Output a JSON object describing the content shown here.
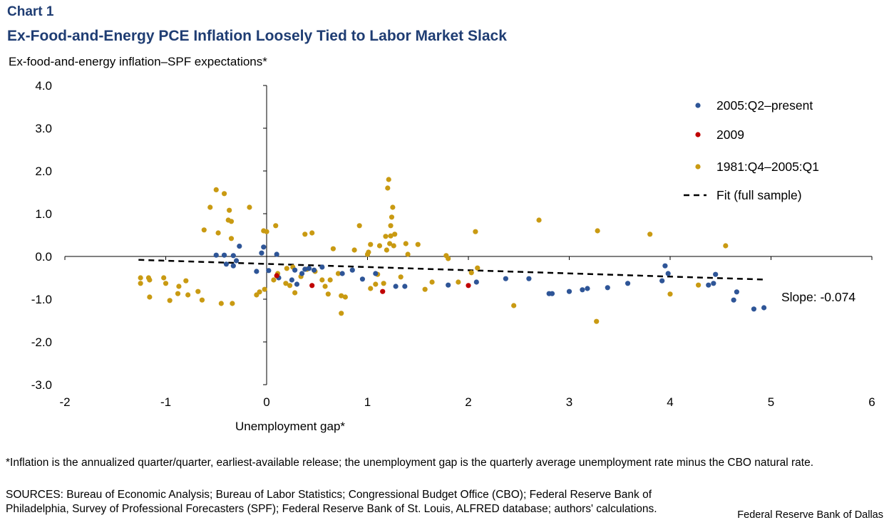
{
  "header": {
    "chart_number": "Chart 1",
    "title": "Ex-Food-and-Energy PCE Inflation Loosely Tied to Labor Market Slack"
  },
  "footer": {
    "footnote": "*Inflation is the annualized quarter/quarter, earliest-available release; the unemployment  gap is the quarterly average unemployment rate minus the CBO natural rate.",
    "sources": "SOURCES: Bureau of Economic Analysis; Bureau of Labor Statistics; Congressional Budget Office (CBO); Federal Reserve Bank of Philadelphia, Survey of Professional Forecasters (SPF); Federal Reserve Bank of St. Louis, ALFRED database; authors' calculations.",
    "credit": "Federal Reserve  Bank of Dallas"
  },
  "chart_data": {
    "type": "scatter",
    "xlabel": "Unemployment  gap*",
    "ylabel": "Ex-food-and-energy  inflation–SPF  expectations*",
    "xlim": [
      -2,
      6
    ],
    "ylim": [
      -3,
      4
    ],
    "x_ticks": [
      "-2",
      "-1",
      "0",
      "1",
      "2",
      "3",
      "4",
      "5",
      "6"
    ],
    "y_ticks": [
      "4.0",
      "3.0",
      "2.0",
      "1.0",
      "0.0",
      "-1.0",
      "-2.0",
      "-3.0"
    ],
    "legend_position": "top-right",
    "annotation": "Slope: -0.074",
    "series": [
      {
        "name": "2005:Q2–present",
        "color": "#2e5597",
        "points": [
          [
            -0.5,
            0.03
          ],
          [
            -0.42,
            0.03
          ],
          [
            -0.4,
            -0.18
          ],
          [
            -0.33,
            0.02
          ],
          [
            -0.33,
            -0.22
          ],
          [
            -0.3,
            -0.1
          ],
          [
            -0.27,
            0.24
          ],
          [
            -0.1,
            -0.35
          ],
          [
            -0.05,
            0.08
          ],
          [
            -0.03,
            0.22
          ],
          [
            0.02,
            -0.33
          ],
          [
            0.1,
            0.05
          ],
          [
            0.12,
            -0.5
          ],
          [
            0.25,
            -0.55
          ],
          [
            0.28,
            -0.32
          ],
          [
            0.3,
            -0.65
          ],
          [
            0.35,
            -0.4
          ],
          [
            0.38,
            -0.3
          ],
          [
            0.42,
            -0.28
          ],
          [
            0.47,
            -0.32
          ],
          [
            0.55,
            -0.25
          ],
          [
            0.75,
            -0.4
          ],
          [
            0.85,
            -0.32
          ],
          [
            0.95,
            -0.53
          ],
          [
            1.08,
            -0.4
          ],
          [
            1.28,
            -0.7
          ],
          [
            1.37,
            -0.7
          ],
          [
            1.8,
            -0.67
          ],
          [
            2.08,
            -0.6
          ],
          [
            2.37,
            -0.52
          ],
          [
            2.6,
            -0.52
          ],
          [
            2.8,
            -0.87
          ],
          [
            2.83,
            -0.87
          ],
          [
            3.0,
            -0.82
          ],
          [
            3.13,
            -0.78
          ],
          [
            3.18,
            -0.75
          ],
          [
            3.38,
            -0.73
          ],
          [
            3.58,
            -0.63
          ],
          [
            3.92,
            -0.57
          ],
          [
            3.95,
            -0.22
          ],
          [
            3.98,
            -0.4
          ],
          [
            4.38,
            -0.67
          ],
          [
            4.43,
            -0.63
          ],
          [
            4.45,
            -0.42
          ],
          [
            4.63,
            -1.02
          ],
          [
            4.66,
            -0.83
          ],
          [
            4.83,
            -1.23
          ],
          [
            4.93,
            -1.2
          ]
        ]
      },
      {
        "name": "2009",
        "color": "#c00000",
        "points": [
          [
            0.1,
            -0.45
          ],
          [
            0.45,
            -0.68
          ],
          [
            1.15,
            -0.82
          ],
          [
            2.0,
            -0.68
          ]
        ]
      },
      {
        "name": "1981:Q4–2005:Q1",
        "color": "#c99a12",
        "points": [
          [
            -1.25,
            -0.5
          ],
          [
            -1.25,
            -0.63
          ],
          [
            -1.17,
            -0.5
          ],
          [
            -1.16,
            -0.55
          ],
          [
            -1.16,
            -0.95
          ],
          [
            -1.02,
            -0.5
          ],
          [
            -1.0,
            -0.63
          ],
          [
            -0.96,
            -1.03
          ],
          [
            -0.88,
            -0.87
          ],
          [
            -0.87,
            -0.7
          ],
          [
            -0.8,
            -0.57
          ],
          [
            -0.78,
            -0.9
          ],
          [
            -0.68,
            -0.82
          ],
          [
            -0.64,
            -1.02
          ],
          [
            -0.62,
            0.62
          ],
          [
            -0.56,
            1.15
          ],
          [
            -0.5,
            1.56
          ],
          [
            -0.48,
            0.55
          ],
          [
            -0.45,
            -1.1
          ],
          [
            -0.42,
            1.47
          ],
          [
            -0.38,
            0.85
          ],
          [
            -0.37,
            1.08
          ],
          [
            -0.35,
            0.42
          ],
          [
            -0.35,
            0.82
          ],
          [
            -0.34,
            -1.1
          ],
          [
            -0.17,
            1.15
          ],
          [
            -0.1,
            -0.9
          ],
          [
            -0.07,
            -0.83
          ],
          [
            -0.03,
            0.6
          ],
          [
            -0.02,
            -0.77
          ],
          [
            0.0,
            0.58
          ],
          [
            0.07,
            -0.55
          ],
          [
            0.09,
            0.72
          ],
          [
            0.11,
            -0.4
          ],
          [
            0.19,
            -0.63
          ],
          [
            0.2,
            -0.28
          ],
          [
            0.23,
            -0.68
          ],
          [
            0.26,
            -0.25
          ],
          [
            0.28,
            -0.85
          ],
          [
            0.34,
            -0.47
          ],
          [
            0.38,
            0.52
          ],
          [
            0.4,
            -0.3
          ],
          [
            0.45,
            0.55
          ],
          [
            0.48,
            -0.35
          ],
          [
            0.55,
            -0.55
          ],
          [
            0.58,
            -0.7
          ],
          [
            0.61,
            -0.88
          ],
          [
            0.63,
            -0.55
          ],
          [
            0.66,
            0.18
          ],
          [
            0.71,
            -0.4
          ],
          [
            0.74,
            -0.92
          ],
          [
            0.74,
            -1.33
          ],
          [
            0.78,
            -0.95
          ],
          [
            0.87,
            0.15
          ],
          [
            0.92,
            0.72
          ],
          [
            1.0,
            0.05
          ],
          [
            1.01,
            0.1
          ],
          [
            1.03,
            0.28
          ],
          [
            1.03,
            -0.75
          ],
          [
            1.08,
            -0.65
          ],
          [
            1.1,
            -0.42
          ],
          [
            1.12,
            0.25
          ],
          [
            1.16,
            -0.63
          ],
          [
            1.18,
            0.47
          ],
          [
            1.19,
            0.15
          ],
          [
            1.2,
            1.6
          ],
          [
            1.21,
            1.8
          ],
          [
            1.22,
            0.3
          ],
          [
            1.23,
            0.48
          ],
          [
            1.23,
            0.72
          ],
          [
            1.24,
            0.92
          ],
          [
            1.25,
            1.15
          ],
          [
            1.26,
            0.25
          ],
          [
            1.27,
            0.52
          ],
          [
            1.33,
            -0.48
          ],
          [
            1.38,
            0.3
          ],
          [
            1.4,
            0.05
          ],
          [
            1.5,
            0.28
          ],
          [
            1.57,
            -0.77
          ],
          [
            1.64,
            -0.6
          ],
          [
            1.78,
            0.02
          ],
          [
            1.8,
            -0.05
          ],
          [
            1.9,
            -0.6
          ],
          [
            2.03,
            -0.38
          ],
          [
            2.07,
            0.58
          ],
          [
            2.09,
            -0.27
          ],
          [
            2.45,
            -1.15
          ],
          [
            2.7,
            0.85
          ],
          [
            3.27,
            -1.52
          ],
          [
            3.28,
            0.6
          ],
          [
            3.8,
            0.52
          ],
          [
            4.0,
            -0.88
          ],
          [
            4.28,
            -0.67
          ],
          [
            4.55,
            0.25
          ]
        ]
      }
    ],
    "fit": {
      "name": "Fit (full sample)",
      "slope": -0.074,
      "x_range": [
        -1.27,
        4.93
      ],
      "y_range": [
        -0.08,
        -0.54
      ],
      "style": "dashed",
      "color": "#000000"
    }
  }
}
